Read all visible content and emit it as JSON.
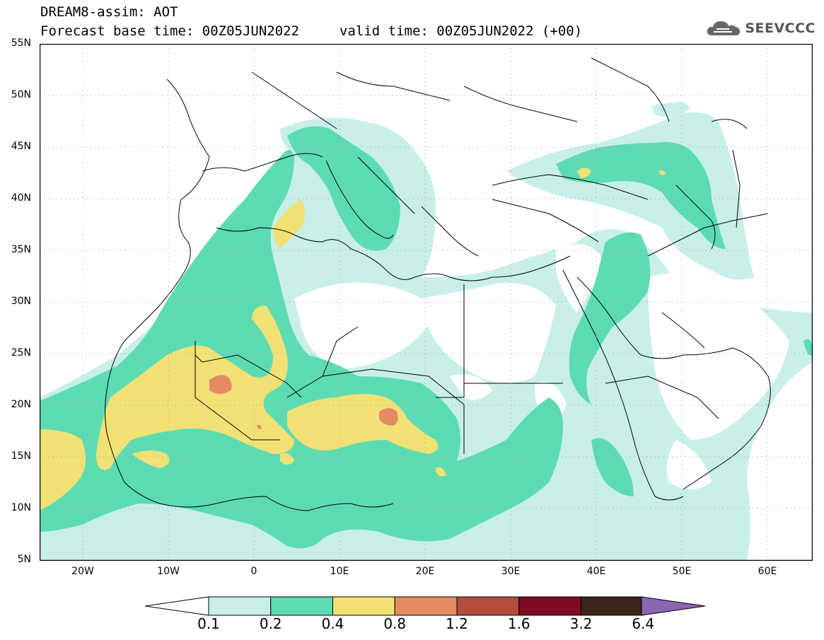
{
  "header": {
    "line1": "DREAM8-assim: AOT",
    "base_time": "Forecast base time: 00Z05JUN2022",
    "valid_time": "valid time: 00Z05JUN2022 (+00)"
  },
  "logo": {
    "text": "SEEVCCC",
    "icon": "cloud-icon"
  },
  "axes": {
    "lat_labels": [
      "55N",
      "50N",
      "45N",
      "40N",
      "35N",
      "30N",
      "25N",
      "20N",
      "15N",
      "10N",
      "5N"
    ],
    "lon_labels": [
      "20W",
      "10W",
      "0",
      "10E",
      "20E",
      "30E",
      "40E",
      "50E",
      "60E"
    ]
  },
  "colorbar": {
    "labels": [
      "0.1",
      "0.2",
      "0.4",
      "0.8",
      "1.2",
      "1.6",
      "3.2",
      "6.4"
    ],
    "colors": [
      "#c8f0e8",
      "#5ddcb4",
      "#f2e276",
      "#e58b63",
      "#b34c3c",
      "#7e0a24",
      "#3b2419",
      "#8b66b3"
    ]
  }
}
